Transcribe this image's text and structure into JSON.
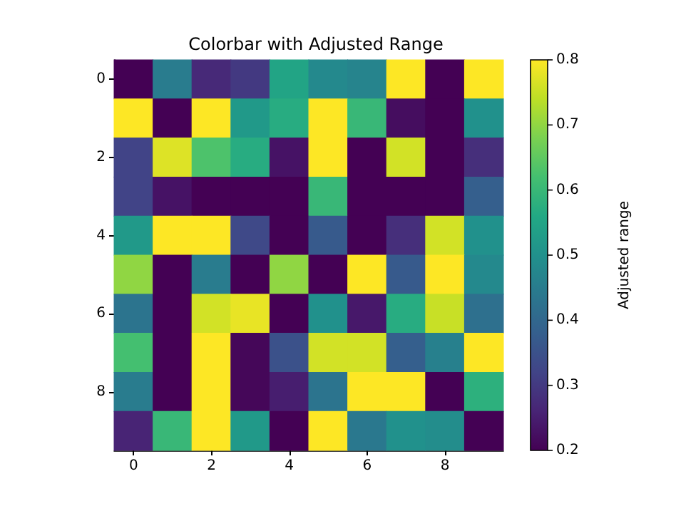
{
  "chart_data": {
    "type": "heatmap",
    "title": "Colorbar with Adjusted Range",
    "clabel": "Adjusted range",
    "categories": [
      "0",
      null,
      "2",
      null,
      "4",
      null,
      "6",
      null,
      "8",
      null
    ],
    "y_categories": [
      "0",
      null,
      "2",
      null,
      "4",
      null,
      "6",
      null,
      "8",
      null
    ],
    "cells": [
      [
        0.2,
        0.45,
        0.27,
        0.3,
        0.55,
        0.48,
        0.47,
        0.8,
        0.2,
        0.8
      ],
      [
        0.8,
        0.2,
        0.8,
        0.52,
        0.57,
        0.8,
        0.6,
        0.22,
        0.2,
        0.5
      ],
      [
        0.32,
        0.77,
        0.63,
        0.57,
        0.23,
        0.8,
        0.2,
        0.76,
        0.2,
        0.28
      ],
      [
        0.32,
        0.23,
        0.2,
        0.2,
        0.2,
        0.6,
        0.2,
        0.2,
        0.2,
        0.38
      ],
      [
        0.52,
        0.8,
        0.8,
        0.33,
        0.2,
        0.37,
        0.2,
        0.28,
        0.76,
        0.5
      ],
      [
        0.7,
        0.2,
        0.45,
        0.2,
        0.7,
        0.2,
        0.8,
        0.37,
        0.8,
        0.48
      ],
      [
        0.43,
        0.2,
        0.76,
        0.78,
        0.2,
        0.5,
        0.24,
        0.57,
        0.75,
        0.42
      ],
      [
        0.62,
        0.2,
        0.8,
        0.21,
        0.35,
        0.76,
        0.76,
        0.38,
        0.46,
        0.8
      ],
      [
        0.45,
        0.2,
        0.8,
        0.21,
        0.25,
        0.43,
        0.8,
        0.8,
        0.2,
        0.58
      ],
      [
        0.26,
        0.6,
        0.8,
        0.52,
        0.2,
        0.8,
        0.44,
        0.5,
        0.49,
        0.2
      ]
    ],
    "clim": [
      0.2,
      0.8
    ],
    "cticks": [
      0.2,
      0.3,
      0.4,
      0.5,
      0.6,
      0.7,
      0.8
    ]
  }
}
